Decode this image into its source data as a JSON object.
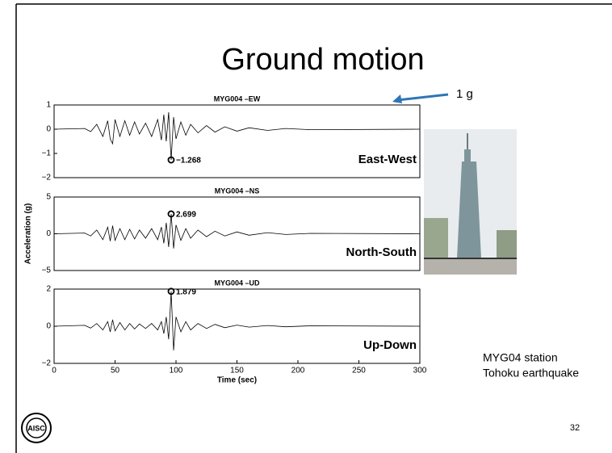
{
  "slide": {
    "title": "Ground motion",
    "note": "1 g",
    "caption_lines": [
      "MYG04 station",
      "Tohoku earthquake"
    ],
    "page_number": "32"
  },
  "chart_data": [
    {
      "type": "line",
      "title": "MYG004 –EW",
      "label": "East-West",
      "color": "#000000",
      "x": [
        0,
        25,
        30,
        35,
        40,
        44,
        46,
        48,
        50,
        54,
        58,
        62,
        66,
        70,
        75,
        80,
        85,
        88,
        90,
        92,
        94,
        96,
        98,
        100,
        104,
        108,
        112,
        118,
        125,
        132,
        140,
        150,
        160,
        175,
        190,
        210,
        300
      ],
      "values": [
        0,
        0.03,
        -0.1,
        0.2,
        -0.3,
        0.35,
        -0.4,
        -0.6,
        0.4,
        -0.3,
        0.35,
        -0.25,
        0.3,
        -0.2,
        0.25,
        -0.3,
        0.4,
        -0.45,
        0.6,
        -0.5,
        0.7,
        -1.268,
        0.5,
        -0.4,
        0.3,
        -0.25,
        0.2,
        -0.15,
        0.15,
        -0.12,
        0.1,
        -0.08,
        0.06,
        -0.05,
        0.03,
        -0.02,
        0
      ],
      "xlim": [
        0,
        300
      ],
      "ylim": [
        -2,
        1
      ],
      "yticks": [
        {
          "value": -2,
          "label": "−2"
        },
        {
          "value": -1,
          "label": "−1"
        },
        0,
        1
      ],
      "annotations": [
        {
          "x": 96,
          "y": -1.268,
          "label": "−1.268"
        }
      ]
    },
    {
      "type": "line",
      "title": "MYG004 –NS",
      "label": "North-South",
      "color": "#000000",
      "ylabel": "Acceleration (g)",
      "x": [
        0,
        25,
        30,
        35,
        40,
        44,
        46,
        48,
        50,
        54,
        58,
        62,
        66,
        70,
        75,
        80,
        85,
        88,
        90,
        92,
        94,
        96,
        98,
        100,
        104,
        108,
        112,
        118,
        125,
        132,
        140,
        150,
        160,
        175,
        190,
        210,
        300
      ],
      "values": [
        0,
        0.1,
        -0.3,
        0.5,
        -0.8,
        0.9,
        -1,
        1.1,
        -0.9,
        0.7,
        -0.8,
        0.6,
        -0.7,
        0.5,
        -0.6,
        0.7,
        -0.8,
        0.9,
        -1.3,
        1.5,
        -1.8,
        2.699,
        -2,
        1.2,
        -0.9,
        0.7,
        -0.6,
        0.5,
        -0.4,
        0.35,
        -0.3,
        0.25,
        -0.2,
        0.15,
        -0.1,
        0.05,
        0
      ],
      "xlim": [
        0,
        300
      ],
      "ylim": [
        -5,
        5
      ],
      "yticks": [
        {
          "value": -5,
          "label": "−5"
        },
        0,
        5
      ],
      "annotations": [
        {
          "x": 96,
          "y": 2.699,
          "label": "2.699"
        }
      ]
    },
    {
      "type": "line",
      "title": "MYG004 –UD",
      "label": "Up-Down",
      "color": "#000000",
      "xlabel": "Time (sec)",
      "x": [
        0,
        25,
        30,
        35,
        40,
        44,
        46,
        48,
        50,
        54,
        58,
        62,
        66,
        70,
        75,
        80,
        85,
        88,
        90,
        92,
        94,
        96,
        98,
        100,
        104,
        108,
        112,
        118,
        125,
        132,
        140,
        150,
        160,
        175,
        190,
        210,
        300
      ],
      "values": [
        0,
        0.05,
        -0.1,
        0.15,
        -0.2,
        0.25,
        -0.3,
        0.35,
        -0.25,
        0.2,
        -0.2,
        0.15,
        -0.15,
        0.12,
        -0.12,
        0.15,
        -0.2,
        0.25,
        -0.4,
        0.5,
        -0.7,
        1.879,
        -1.3,
        0.5,
        -0.3,
        0.25,
        -0.2,
        0.15,
        -0.12,
        0.1,
        -0.08,
        0.06,
        -0.05,
        0.04,
        -0.03,
        0.02,
        0
      ],
      "xlim": [
        0,
        300
      ],
      "ylim": [
        -2,
        2
      ],
      "xticks": [
        0,
        50,
        100,
        150,
        200,
        250,
        300
      ],
      "yticks": [
        {
          "value": -2,
          "label": "−2"
        },
        0,
        2
      ],
      "annotations": [
        {
          "x": 96,
          "y": 1.879,
          "label": "1.879"
        }
      ]
    }
  ]
}
